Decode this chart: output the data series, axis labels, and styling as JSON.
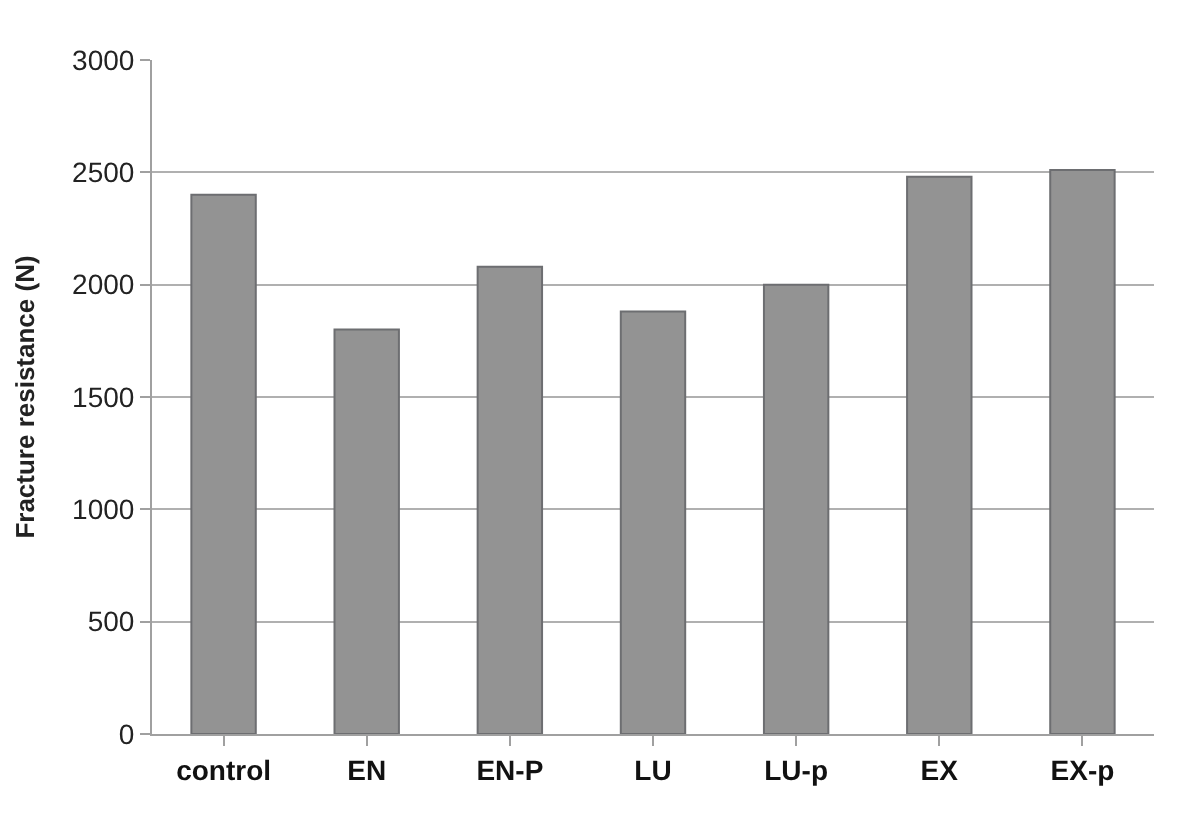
{
  "chart_data": {
    "type": "bar",
    "ylabel": "Fracture resistance (N)",
    "categories": [
      "control",
      "EN",
      "EN-P",
      "LU",
      "LU-p",
      "EX",
      "EX-p"
    ],
    "values": [
      2400,
      1800,
      2080,
      1880,
      2000,
      2480,
      2510
    ],
    "color": "#939393",
    "ylim": [
      0,
      3000
    ],
    "yticks": [
      0,
      500,
      1000,
      1500,
      2000,
      2500,
      3000
    ],
    "grid": "y"
  }
}
